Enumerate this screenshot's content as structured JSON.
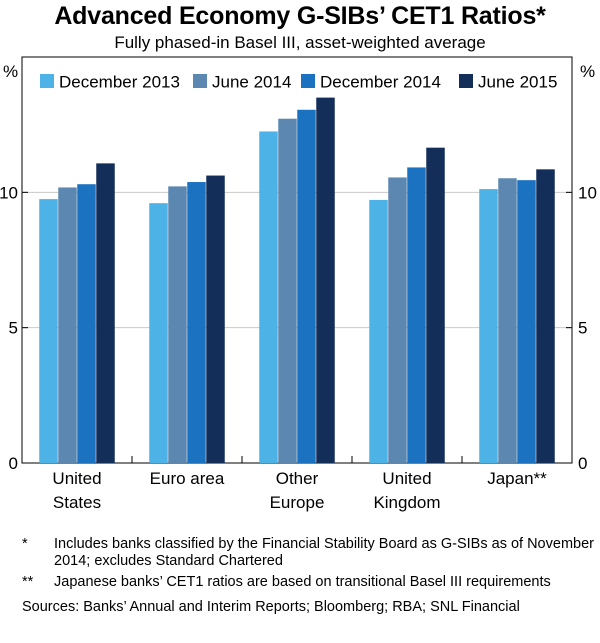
{
  "chart_data": {
    "type": "bar",
    "title": "Advanced Economy G-SIBs’ CET1 Ratios*",
    "subtitle": "Fully phased-in Basel III, asset-weighted average",
    "ylabel_left": "%",
    "ylabel_right": "%",
    "ylim": [
      0,
      15
    ],
    "yticks": [
      0,
      5,
      10
    ],
    "categories": [
      [
        "United",
        "States"
      ],
      [
        "Euro area"
      ],
      [
        "Other",
        "Europe"
      ],
      [
        "United",
        "Kingdom"
      ],
      [
        "Japan**"
      ]
    ],
    "series": [
      {
        "name": "December 2013",
        "color": "#4db3e6",
        "values": [
          9.75,
          9.6,
          12.25,
          9.72,
          10.12
        ]
      },
      {
        "name": "June 2014",
        "color": "#5b87b0",
        "values": [
          10.18,
          10.22,
          12.72,
          10.55,
          10.52
        ]
      },
      {
        "name": "December 2014",
        "color": "#1a72c0",
        "values": [
          10.3,
          10.38,
          13.05,
          10.92,
          10.45
        ]
      },
      {
        "name": "June 2015",
        "color": "#142e5a",
        "values": [
          11.07,
          10.62,
          13.5,
          11.65,
          10.85
        ]
      }
    ]
  },
  "notes": [
    {
      "mark": "*",
      "text": "Includes banks classified by the Financial Stability Board as G-SIBs as of November 2014; excludes Standard Chartered"
    },
    {
      "mark": "**",
      "text": "Japanese banks’ CET1 ratios are based on transitional Basel III requirements"
    }
  ],
  "sources": "Sources:  Banks’ Annual and Interim Reports; Bloomberg; RBA; SNL Financial"
}
